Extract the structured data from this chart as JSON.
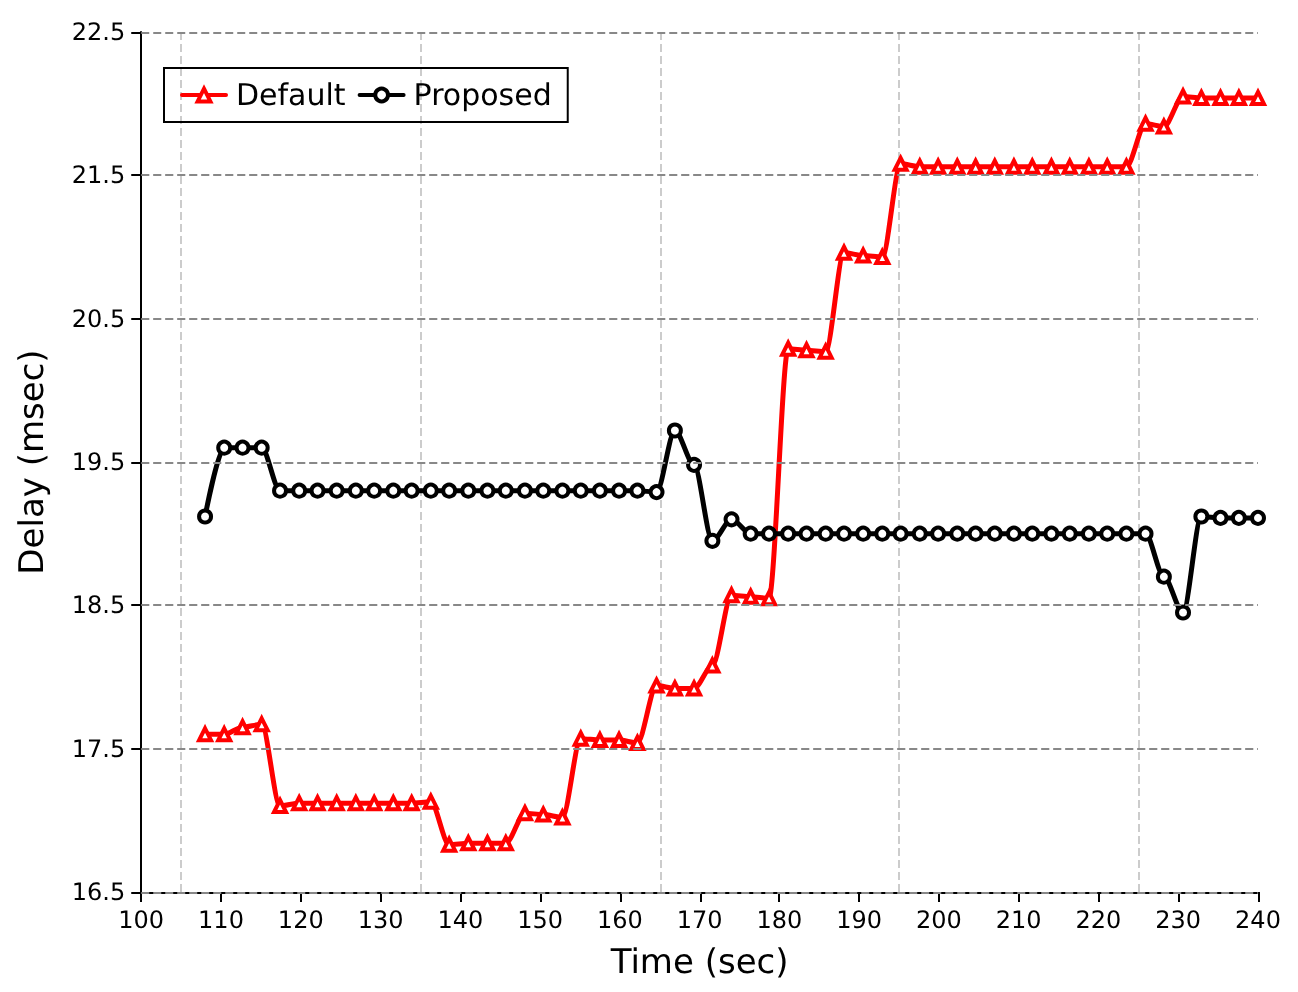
{
  "chart_data": {
    "type": "line",
    "xlabel": "Time (sec)",
    "ylabel": "Delay (msec)",
    "xlim": [
      100,
      240
    ],
    "xticks": [
      100,
      110,
      120,
      130,
      140,
      150,
      160,
      170,
      180,
      190,
      200,
      210,
      220,
      230,
      240
    ],
    "ylim": [
      16.5,
      22.5
    ],
    "yticks": [
      16.5,
      17.5,
      18.5,
      19.5,
      20.5,
      21.5,
      22.5
    ],
    "grid": true,
    "legend": "top left",
    "x": [
      108,
      110.4,
      112.7,
      115.1,
      117.4,
      119.8,
      122.1,
      124.5,
      126.9,
      129.2,
      131.6,
      133.9,
      136.3,
      138.6,
      141,
      143.4,
      145.7,
      148.1,
      150.4,
      152.8,
      155.1,
      157.5,
      159.9,
      162.2,
      164.6,
      166.9,
      169.3,
      171.6,
      174,
      176.4,
      178.7,
      181.1,
      183.4,
      185.8,
      188.1,
      190.5,
      192.9,
      195.2,
      197.6,
      199.9,
      202.3,
      204.6,
      207,
      209.4,
      211.7,
      214.1,
      216.4,
      218.8,
      221.1,
      223.5,
      225.9,
      228.2,
      230.6,
      232.9,
      235.3,
      237.6,
      240
    ],
    "series": [
      {
        "name": "Default",
        "color": "#ff0000",
        "marker": "triangle",
        "values": [
          17.6,
          17.6,
          17.65,
          17.67,
          17.1,
          17.12,
          17.12,
          17.12,
          17.12,
          17.12,
          17.12,
          17.12,
          17.13,
          16.83,
          16.84,
          16.84,
          16.84,
          17.05,
          17.04,
          17.02,
          17.57,
          17.56,
          17.56,
          17.54,
          17.94,
          17.92,
          17.92,
          18.08,
          18.57,
          18.56,
          18.55,
          20.29,
          20.28,
          20.27,
          20.96,
          20.94,
          20.93,
          21.58,
          21.56,
          21.56,
          21.56,
          21.56,
          21.56,
          21.56,
          21.56,
          21.56,
          21.56,
          21.56,
          21.56,
          21.56,
          21.86,
          21.84,
          22.05,
          22.04,
          22.04,
          22.04,
          22.04
        ]
      },
      {
        "name": "Proposed",
        "color": "#000000",
        "marker": "circle",
        "values": [
          19.12,
          19.6,
          19.6,
          19.6,
          19.3,
          19.3,
          19.3,
          19.3,
          19.3,
          19.3,
          19.3,
          19.3,
          19.3,
          19.3,
          19.3,
          19.3,
          19.3,
          19.3,
          19.3,
          19.3,
          19.3,
          19.3,
          19.3,
          19.3,
          19.29,
          19.72,
          19.48,
          18.95,
          19.1,
          19.0,
          19.0,
          19.0,
          19.0,
          19.0,
          19.0,
          19.0,
          19.0,
          19.0,
          19.0,
          19.0,
          19.0,
          19.0,
          19.0,
          19.0,
          19.0,
          19.0,
          19.0,
          19.0,
          19.0,
          19.0,
          19.0,
          18.7,
          18.45,
          19.12,
          19.11,
          19.11,
          19.11
        ]
      }
    ]
  }
}
